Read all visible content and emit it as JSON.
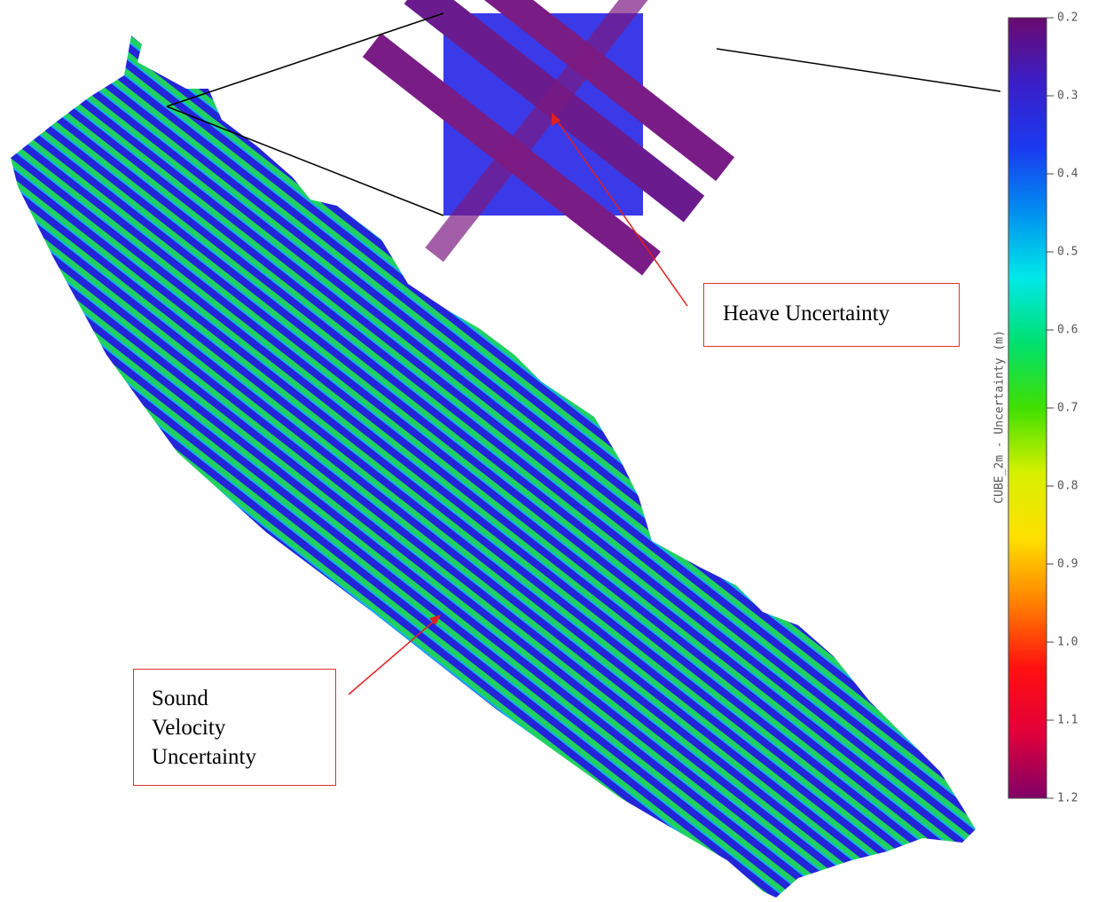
{
  "colorbar": {
    "label": "CUBE_2m - Uncertainty (m)",
    "lim": [
      0.2,
      1.2
    ],
    "ticks": [
      0.2,
      0.3,
      0.4,
      0.5,
      0.6,
      0.7,
      0.8,
      0.9,
      {
        "value": 1,
        "label": "1.0"
      },
      1.1,
      1.2
    ],
    "colors": [
      "#6a0a6e",
      "#3a1ec8",
      "#1a3af0",
      "#0090f0",
      "#00e8e8",
      "#00e070",
      "#40e000",
      "#d8f000",
      "#ffe000",
      "#ff8000",
      "#ff1010",
      "#e0003a",
      "#800066"
    ]
  },
  "annotations": [
    {
      "text": "Heave Uncertainty"
    },
    {
      "text": "Sound Velocity Uncertainty"
    }
  ]
}
